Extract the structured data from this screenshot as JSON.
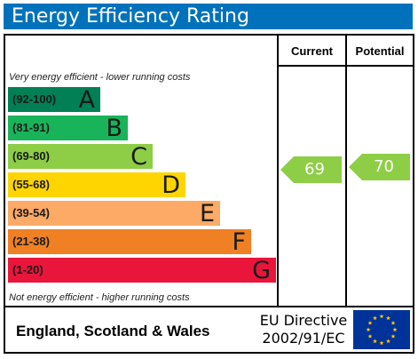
{
  "title": "Energy Efficiency Rating",
  "columns": {
    "current": "Current",
    "potential": "Potential"
  },
  "top_note": "Very energy efficient - lower running costs",
  "bottom_note": "Not energy efficient - higher running costs",
  "bands": [
    {
      "range": "(92-100)",
      "letter": "A",
      "color": "#008054"
    },
    {
      "range": "(81-91)",
      "letter": "B",
      "color": "#19b459"
    },
    {
      "range": "(69-80)",
      "letter": "C",
      "color": "#8dce46"
    },
    {
      "range": "(55-68)",
      "letter": "D",
      "color": "#ffd500"
    },
    {
      "range": "(39-54)",
      "letter": "E",
      "color": "#fcaa65"
    },
    {
      "range": "(21-38)",
      "letter": "F",
      "color": "#ef8023"
    },
    {
      "range": "(1-20)",
      "letter": "G",
      "color": "#e9153b"
    }
  ],
  "current_rating": {
    "value": "69",
    "color": "#8dce46"
  },
  "potential_rating": {
    "value": "70",
    "color": "#8dce46"
  },
  "footer": {
    "region": "England, Scotland & Wales",
    "directive_line1": "EU Directive",
    "directive_line2": "2002/91/EC",
    "flag_color": "#003399",
    "star_color": "#ffcc00"
  }
}
